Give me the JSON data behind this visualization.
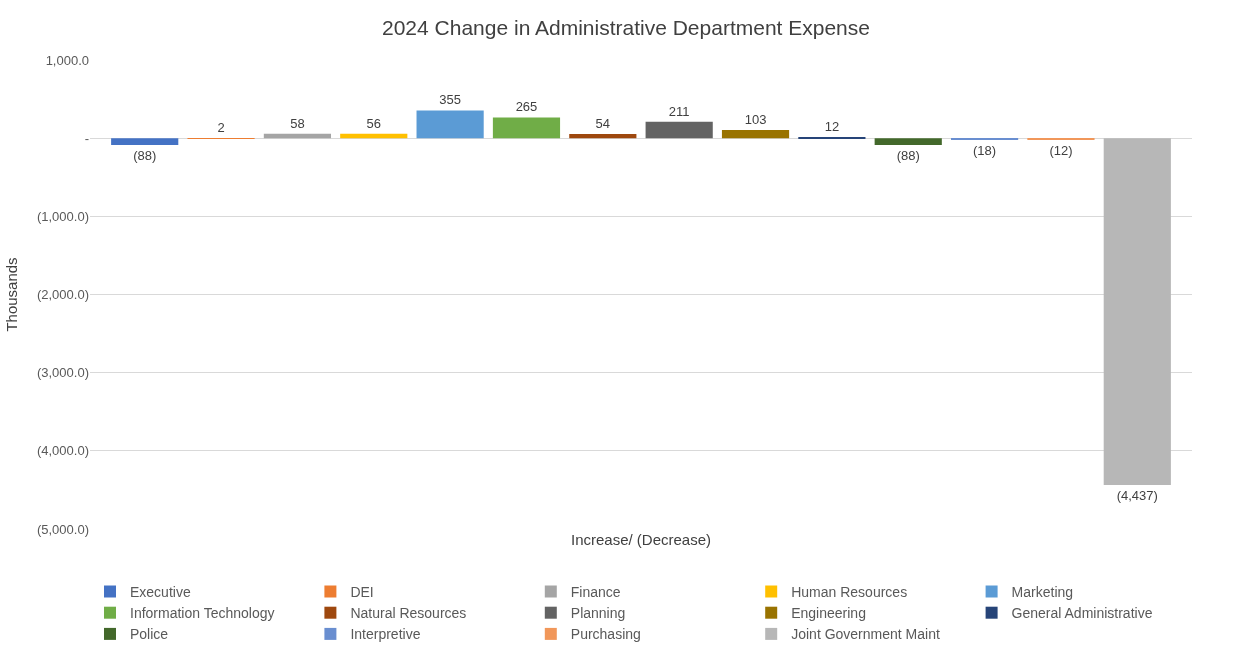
{
  "chart_data": {
    "type": "bar",
    "title": "2024 Change in Administrative Department Expense",
    "ylabel": "Thousands",
    "categories": [
      "Increase/ (Decrease)"
    ],
    "series": [
      {
        "name": "Executive",
        "color": "#4472c4",
        "values": [
          -88
        ],
        "value_labels": [
          "(88)"
        ]
      },
      {
        "name": "DEI",
        "color": "#ed7d31",
        "values": [
          2
        ],
        "value_labels": [
          "2"
        ]
      },
      {
        "name": "Finance",
        "color": "#a5a5a5",
        "values": [
          58
        ],
        "value_labels": [
          "58"
        ]
      },
      {
        "name": "Human Resources",
        "color": "#ffc000",
        "values": [
          56
        ],
        "value_labels": [
          "56"
        ]
      },
      {
        "name": "Marketing",
        "color": "#5b9bd5",
        "values": [
          355
        ],
        "value_labels": [
          "355"
        ]
      },
      {
        "name": "Information Technology",
        "color": "#70ad47",
        "values": [
          265
        ],
        "value_labels": [
          "265"
        ]
      },
      {
        "name": "Natural Resources",
        "color": "#9e480e",
        "values": [
          54
        ],
        "value_labels": [
          "54"
        ]
      },
      {
        "name": "Planning",
        "color": "#636363",
        "values": [
          211
        ],
        "value_labels": [
          "211"
        ]
      },
      {
        "name": "Engineering",
        "color": "#997300",
        "values": [
          103
        ],
        "value_labels": [
          "103"
        ]
      },
      {
        "name": "General Administrative",
        "color": "#264478",
        "values": [
          12
        ],
        "value_labels": [
          "12"
        ]
      },
      {
        "name": "Police",
        "color": "#43682b",
        "values": [
          -88
        ],
        "value_labels": [
          "(88)"
        ]
      },
      {
        "name": "Interpretive",
        "color": "#698ed0",
        "values": [
          -18
        ],
        "value_labels": [
          "(18)"
        ]
      },
      {
        "name": "Purchasing",
        "color": "#f1975a",
        "values": [
          -12
        ],
        "value_labels": [
          "(12)"
        ]
      },
      {
        "name": "Joint Government Maint",
        "color": "#b7b7b7",
        "values": [
          -4437
        ],
        "value_labels": [
          "(4,437)"
        ]
      }
    ],
    "ylim": [
      -5000,
      1000
    ],
    "yticks": [
      {
        "value": 1000,
        "label": "1,000.0"
      },
      {
        "value": 0,
        "label": "-"
      },
      {
        "value": -1000,
        "label": "(1,000.0)"
      },
      {
        "value": -2000,
        "label": "(2,000.0)"
      },
      {
        "value": -3000,
        "label": "(3,000.0)"
      },
      {
        "value": -4000,
        "label": "(4,000.0)"
      },
      {
        "value": -5000,
        "label": "(5,000.0)"
      }
    ],
    "grid": "y",
    "legend": "bottom"
  }
}
